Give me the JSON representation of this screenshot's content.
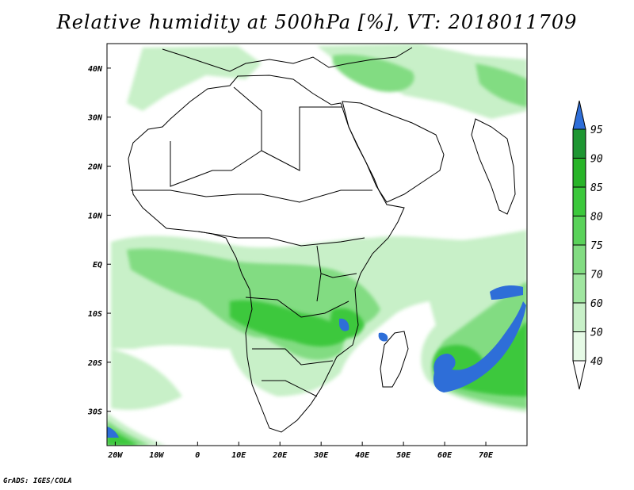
{
  "title": "Relative humidity at 500hPa [%], VT: 2018011709",
  "credit": "GrADS: IGES/COLA",
  "map": {
    "lon_range": [
      -22,
      80
    ],
    "lat_range": [
      -37,
      45
    ],
    "x_ticks": [
      {
        "lon": -20,
        "label": "20W"
      },
      {
        "lon": -10,
        "label": "10W"
      },
      {
        "lon": 0,
        "label": "0"
      },
      {
        "lon": 10,
        "label": "10E"
      },
      {
        "lon": 20,
        "label": "20E"
      },
      {
        "lon": 30,
        "label": "30E"
      },
      {
        "lon": 40,
        "label": "40E"
      },
      {
        "lon": 50,
        "label": "50E"
      },
      {
        "lon": 60,
        "label": "60E"
      },
      {
        "lon": 70,
        "label": "70E"
      }
    ],
    "y_ticks": [
      {
        "lat": 40,
        "label": "40N"
      },
      {
        "lat": 30,
        "label": "30N"
      },
      {
        "lat": 20,
        "label": "20N"
      },
      {
        "lat": 10,
        "label": "10N"
      },
      {
        "lat": 0,
        "label": "EQ"
      },
      {
        "lat": -10,
        "label": "10S"
      },
      {
        "lat": -20,
        "label": "20S"
      },
      {
        "lat": -30,
        "label": "30S"
      }
    ]
  },
  "colorbar": {
    "levels": [
      "40",
      "50",
      "60",
      "70",
      "75",
      "80",
      "85",
      "90",
      "95"
    ],
    "colors": [
      "#ffffff",
      "#e6fae6",
      "#c8f0c8",
      "#a0e6a0",
      "#82dc82",
      "#5ad25a",
      "#3cc83c",
      "#28b428",
      "#1e9632",
      "#2e6ed8"
    ]
  },
  "fill_colors": {
    "light": "#c8f0c8",
    "mid": "#82dc82",
    "strong": "#3cc83c",
    "dark": "#1e9632",
    "blue": "#2e6ed8"
  }
}
